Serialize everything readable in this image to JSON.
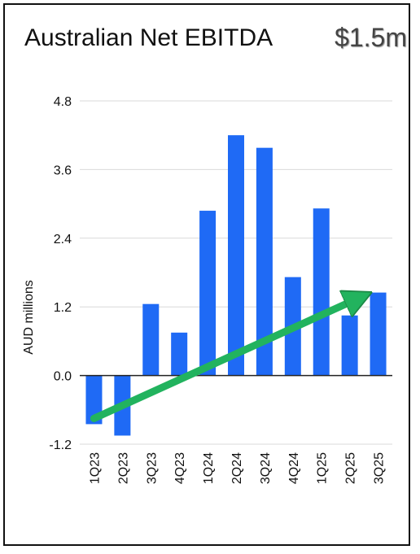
{
  "title": "Australian Net EBITDA",
  "headline_value": "$1.5m",
  "colors": {
    "bar": "#1f6af5",
    "arrow": "#22b35e",
    "arrow_outline": "#1c8a46",
    "grid": "#d9d9d9",
    "frame": "#111111"
  },
  "chart_data": {
    "type": "bar",
    "title": "Australian Net EBITDA",
    "xlabel": "",
    "ylabel": "AUD millions",
    "categories": [
      "1Q23",
      "2Q23",
      "3Q23",
      "4Q23",
      "1Q24",
      "2Q24",
      "3Q24",
      "4Q24",
      "1Q25",
      "2Q25",
      "3Q25"
    ],
    "values": [
      -0.85,
      -1.05,
      1.25,
      0.75,
      2.88,
      4.2,
      3.98,
      1.72,
      2.92,
      1.05,
      1.45
    ],
    "yticks": [
      -1.2,
      0.0,
      1.2,
      2.4,
      3.6,
      4.8
    ],
    "ytick_labels": [
      "-1.2",
      "0.0",
      "1.2",
      "2.4",
      "3.6",
      "4.8"
    ],
    "ylim": [
      -1.2,
      4.8
    ],
    "grid": true,
    "trend_arrow": {
      "from": {
        "category": "1Q23",
        "value": -0.75
      },
      "to": {
        "category": "3Q25",
        "value": 1.45
      }
    }
  }
}
